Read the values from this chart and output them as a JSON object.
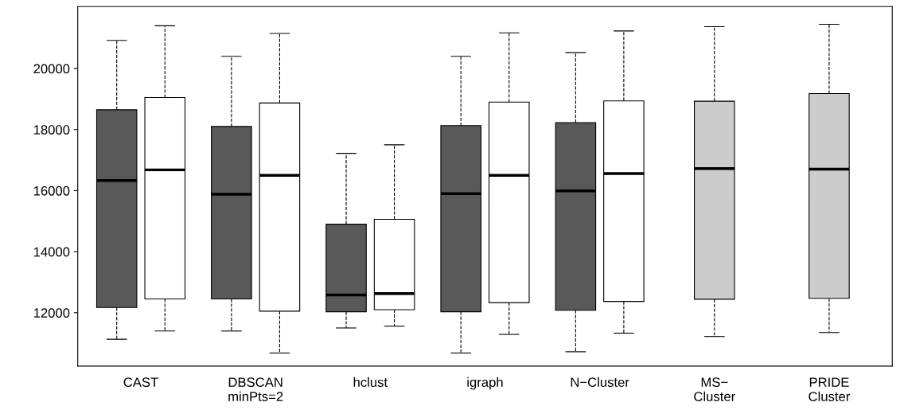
{
  "chart_data": {
    "type": "box",
    "categories": [
      "CAST",
      "DBSCAN\nminPts=2",
      "hclust",
      "igraph",
      "N−Cluster",
      "MS−\nCluster",
      "PRIDE\nCluster"
    ],
    "ylim": [
      10250,
      22030
    ],
    "yticks": [
      12000,
      14000,
      16000,
      18000,
      20000
    ],
    "grid": false,
    "line_style": "dashed",
    "series": [
      {
        "color": "#595959",
        "boxes": [
          {
            "low": 11130,
            "q1": 12170,
            "median": 16330,
            "q3": 18650,
            "high": 20920
          },
          {
            "low": 11400,
            "q1": 12450,
            "median": 15880,
            "q3": 18100,
            "high": 20400
          },
          {
            "low": 11500,
            "q1": 12030,
            "median": 12580,
            "q3": 14900,
            "high": 17220
          },
          {
            "low": 10680,
            "q1": 12030,
            "median": 15900,
            "q3": 18130,
            "high": 20400
          },
          {
            "low": 10720,
            "q1": 12080,
            "median": 15990,
            "q3": 18230,
            "high": 20520
          },
          null,
          null
        ]
      },
      {
        "color": "#ffffff",
        "boxes": [
          {
            "low": 11400,
            "q1": 12450,
            "median": 16680,
            "q3": 19050,
            "high": 21400
          },
          {
            "low": 10680,
            "q1": 12050,
            "median": 16500,
            "q3": 18870,
            "high": 21150
          },
          {
            "low": 11560,
            "q1": 12100,
            "median": 12630,
            "q3": 15060,
            "high": 17500
          },
          {
            "low": 11290,
            "q1": 12330,
            "median": 16500,
            "q3": 18900,
            "high": 21170
          },
          {
            "low": 11330,
            "q1": 12370,
            "median": 16560,
            "q3": 18940,
            "high": 21230
          },
          null,
          null
        ]
      },
      {
        "color": "#cccccc",
        "boxes": [
          null,
          null,
          null,
          null,
          null,
          {
            "low": 11220,
            "q1": 12440,
            "median": 16720,
            "q3": 18930,
            "high": 21370
          },
          {
            "low": 11350,
            "q1": 12470,
            "median": 16700,
            "q3": 19180,
            "high": 21450
          }
        ]
      }
    ]
  }
}
